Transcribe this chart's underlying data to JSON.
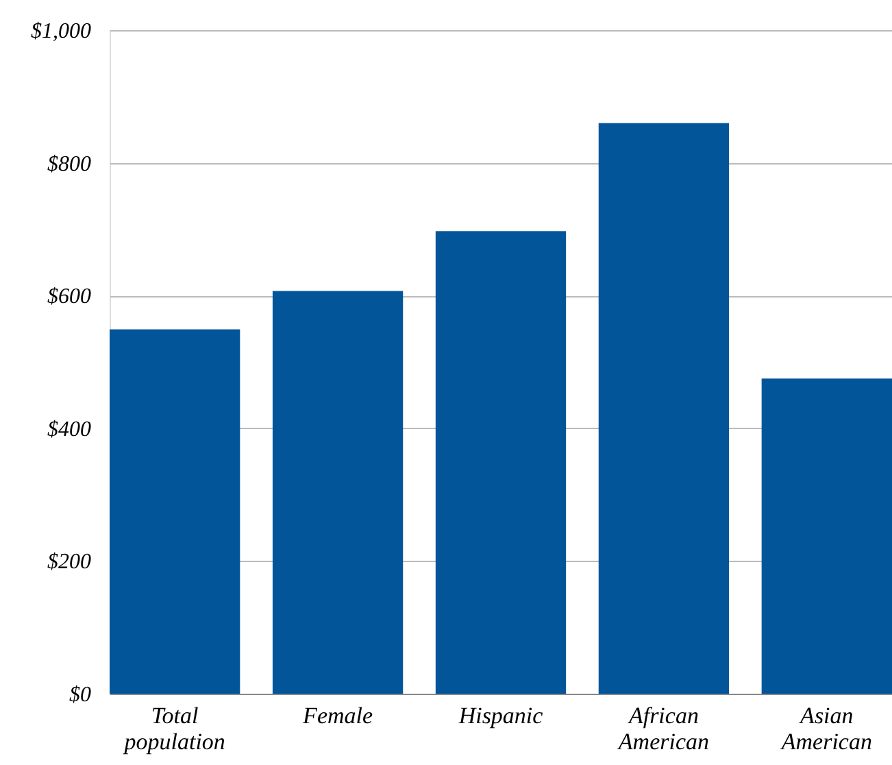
{
  "chart_data": {
    "type": "bar",
    "categories": [
      "Total\npopulation",
      "Female",
      "Hispanic",
      "African\nAmerican",
      "Asian\nAmerican"
    ],
    "values": [
      549,
      607,
      697,
      860,
      475
    ],
    "color": "#03559a",
    "ylim": [
      0,
      1000
    ],
    "yticks": [
      {
        "value": 0,
        "label": "$0"
      },
      {
        "value": 200,
        "label": "$200"
      },
      {
        "value": 400,
        "label": "$400"
      },
      {
        "value": 600,
        "label": "$600"
      },
      {
        "value": 800,
        "label": "$800"
      },
      {
        "value": 1000,
        "label": "$1,000"
      }
    ],
    "grid": "y"
  }
}
